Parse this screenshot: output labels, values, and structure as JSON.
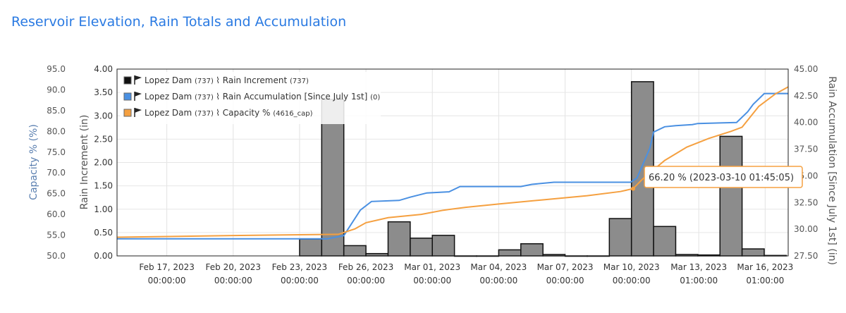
{
  "page": {
    "title": "Reservoir Elevation, Rain Totals and Accumulation"
  },
  "chart_data": {
    "type": "bar+line",
    "x_range": [
      "2023-02-14 18:00",
      "2023-03-17 02:00"
    ],
    "x_ticks": [
      {
        "date": "Feb 17, 2023",
        "time": "00:00:00",
        "t": "2023-02-17 00:00"
      },
      {
        "date": "Feb 20, 2023",
        "time": "00:00:00",
        "t": "2023-02-20 00:00"
      },
      {
        "date": "Feb 23, 2023",
        "time": "00:00:00",
        "t": "2023-02-23 00:00"
      },
      {
        "date": "Feb 26, 2023",
        "time": "00:00:00",
        "t": "2023-02-26 00:00"
      },
      {
        "date": "Mar 01, 2023",
        "time": "00:00:00",
        "t": "2023-03-01 00:00"
      },
      {
        "date": "Mar 04, 2023",
        "time": "00:00:00",
        "t": "2023-03-04 00:00"
      },
      {
        "date": "Mar 07, 2023",
        "time": "00:00:00",
        "t": "2023-03-07 00:00"
      },
      {
        "date": "Mar 10, 2023",
        "time": "00:00:00",
        "t": "2023-03-10 00:00"
      },
      {
        "date": "Mar 13, 2023",
        "time": "01:00:00",
        "t": "2023-03-13 01:00"
      },
      {
        "date": "Mar 16, 2023",
        "time": "01:00:00",
        "t": "2023-03-16 01:00"
      }
    ],
    "axes": {
      "capacity": {
        "label": "Capacity % (%)",
        "range": [
          50,
          95
        ],
        "ticks": [
          "95.0",
          "90.0",
          "85.0",
          "80.0",
          "75.0",
          "70.0",
          "65.0",
          "60.0",
          "55.0",
          "50.0"
        ]
      },
      "rain_increment": {
        "label": "Rain Increment (in)",
        "range": [
          0,
          4
        ],
        "ticks": [
          "4.00",
          "3.50",
          "3.00",
          "2.50",
          "2.00",
          "1.50",
          "1.00",
          "0.50",
          "0.00"
        ]
      },
      "rain_accumulation": {
        "label": "Rain Accumulation [Since July 1st] (in)",
        "range": [
          27.5,
          45
        ],
        "ticks": [
          "45.00",
          "42.50",
          "40.00",
          "37.50",
          "35.00",
          "32.50",
          "30.00",
          "27.50"
        ]
      }
    },
    "legend": {
      "placement": "top-left",
      "items": [
        {
          "swatch": "#111111",
          "site": "Lopez Dam",
          "site_id": "(737)",
          "series": "Rain Increment",
          "id": "(737)"
        },
        {
          "swatch": "#4a90e2",
          "site": "Lopez Dam",
          "site_id": "(737)",
          "series": "Rain Accumulation [Since July 1st]",
          "id": "(0)"
        },
        {
          "swatch": "#f5a040",
          "site": "Lopez Dam",
          "site_id": "(737)",
          "series": "Capacity %",
          "id": "(4616_cap)"
        }
      ]
    },
    "series": [
      {
        "name": "Rain Increment",
        "type": "bar",
        "axis": "rain_increment",
        "color": "#8c8c8c",
        "points": [
          [
            "2023-02-24 00:00",
            0.36
          ],
          [
            "2023-02-25 00:00",
            3.35
          ],
          [
            "2023-02-26 00:00",
            0.22
          ],
          [
            "2023-02-27 00:00",
            0.05
          ],
          [
            "2023-02-28 00:00",
            0.73
          ],
          [
            "2023-03-01 00:00",
            0.38
          ],
          [
            "2023-03-02 00:00",
            0.44
          ],
          [
            "2023-03-03 00:00",
            0.0
          ],
          [
            "2023-03-04 00:00",
            0.0
          ],
          [
            "2023-03-05 00:00",
            0.13
          ],
          [
            "2023-03-06 00:00",
            0.26
          ],
          [
            "2023-03-07 00:00",
            0.03
          ],
          [
            "2023-03-08 00:00",
            0.0
          ],
          [
            "2023-03-09 00:00",
            0.0
          ],
          [
            "2023-03-10 00:00",
            0.8
          ],
          [
            "2023-03-11 00:00",
            3.73
          ],
          [
            "2023-03-12 00:00",
            0.63
          ],
          [
            "2023-03-13 00:00",
            0.03
          ],
          [
            "2023-03-14 00:00",
            0.02
          ],
          [
            "2023-03-15 00:00",
            2.56
          ],
          [
            "2023-03-16 00:00",
            0.15
          ],
          [
            "2023-03-17 00:00",
            0.01
          ]
        ]
      },
      {
        "name": "Rain Accumulation [Since July 1st]",
        "type": "line",
        "axis": "rain_accumulation",
        "color": "#4a90e2",
        "points": [
          [
            "2023-02-14 18:00",
            29.1
          ],
          [
            "2023-02-24 06:00",
            29.1
          ],
          [
            "2023-02-25 00:00",
            29.4
          ],
          [
            "2023-02-25 18:00",
            31.8
          ],
          [
            "2023-02-26 06:00",
            32.6
          ],
          [
            "2023-02-27 12:00",
            32.7
          ],
          [
            "2023-02-28 00:00",
            33.0
          ],
          [
            "2023-02-28 18:00",
            33.4
          ],
          [
            "2023-03-01 18:00",
            33.5
          ],
          [
            "2023-03-02 06:00",
            34.0
          ],
          [
            "2023-03-05 00:00",
            34.0
          ],
          [
            "2023-03-05 12:00",
            34.2
          ],
          [
            "2023-03-06 12:00",
            34.4
          ],
          [
            "2023-03-09 23:00",
            34.4
          ],
          [
            "2023-03-10 06:00",
            34.8
          ],
          [
            "2023-03-10 20:00",
            37.6
          ],
          [
            "2023-03-11 00:00",
            39.1
          ],
          [
            "2023-03-11 12:00",
            39.6
          ],
          [
            "2023-03-12 00:00",
            39.7
          ],
          [
            "2023-03-12 18:00",
            39.8
          ],
          [
            "2023-03-13 00:00",
            39.9
          ],
          [
            "2023-03-14 18:00",
            40.0
          ],
          [
            "2023-03-15 06:00",
            41.0
          ],
          [
            "2023-03-15 12:00",
            41.7
          ],
          [
            "2023-03-16 00:00",
            42.7
          ],
          [
            "2023-03-17 02:00",
            42.7
          ]
        ]
      },
      {
        "name": "Capacity %",
        "type": "line",
        "axis": "capacity",
        "color": "#f5a040",
        "points": [
          [
            "2023-02-14 18:00",
            54.5
          ],
          [
            "2023-02-20 00:00",
            54.9
          ],
          [
            "2023-02-24 18:00",
            55.2
          ],
          [
            "2023-02-25 12:00",
            56.5
          ],
          [
            "2023-02-26 00:00",
            58.0
          ],
          [
            "2023-02-27 00:00",
            59.2
          ],
          [
            "2023-02-28 12:00",
            60.0
          ],
          [
            "2023-03-01 12:00",
            61.0
          ],
          [
            "2023-03-02 12:00",
            61.7
          ],
          [
            "2023-03-04 00:00",
            62.5
          ],
          [
            "2023-03-06 00:00",
            63.5
          ],
          [
            "2023-03-08 00:00",
            64.5
          ],
          [
            "2023-03-09 12:00",
            65.5
          ],
          [
            "2023-03-10 01:45",
            66.2
          ],
          [
            "2023-03-10 12:00",
            68.5
          ],
          [
            "2023-03-11 12:00",
            73.0
          ],
          [
            "2023-03-12 12:00",
            76.2
          ],
          [
            "2023-03-13 12:00",
            78.3
          ],
          [
            "2023-03-14 12:00",
            80.0
          ],
          [
            "2023-03-15 00:00",
            81.0
          ],
          [
            "2023-03-15 18:00",
            86.0
          ],
          [
            "2023-03-16 12:00",
            89.0
          ],
          [
            "2023-03-17 02:00",
            90.7
          ]
        ]
      }
    ],
    "tooltip": {
      "text": "66.20 % (2023-03-10 01:45:05)",
      "series": "Capacity %",
      "t": "2023-03-10 01:45",
      "value": 66.2
    }
  }
}
